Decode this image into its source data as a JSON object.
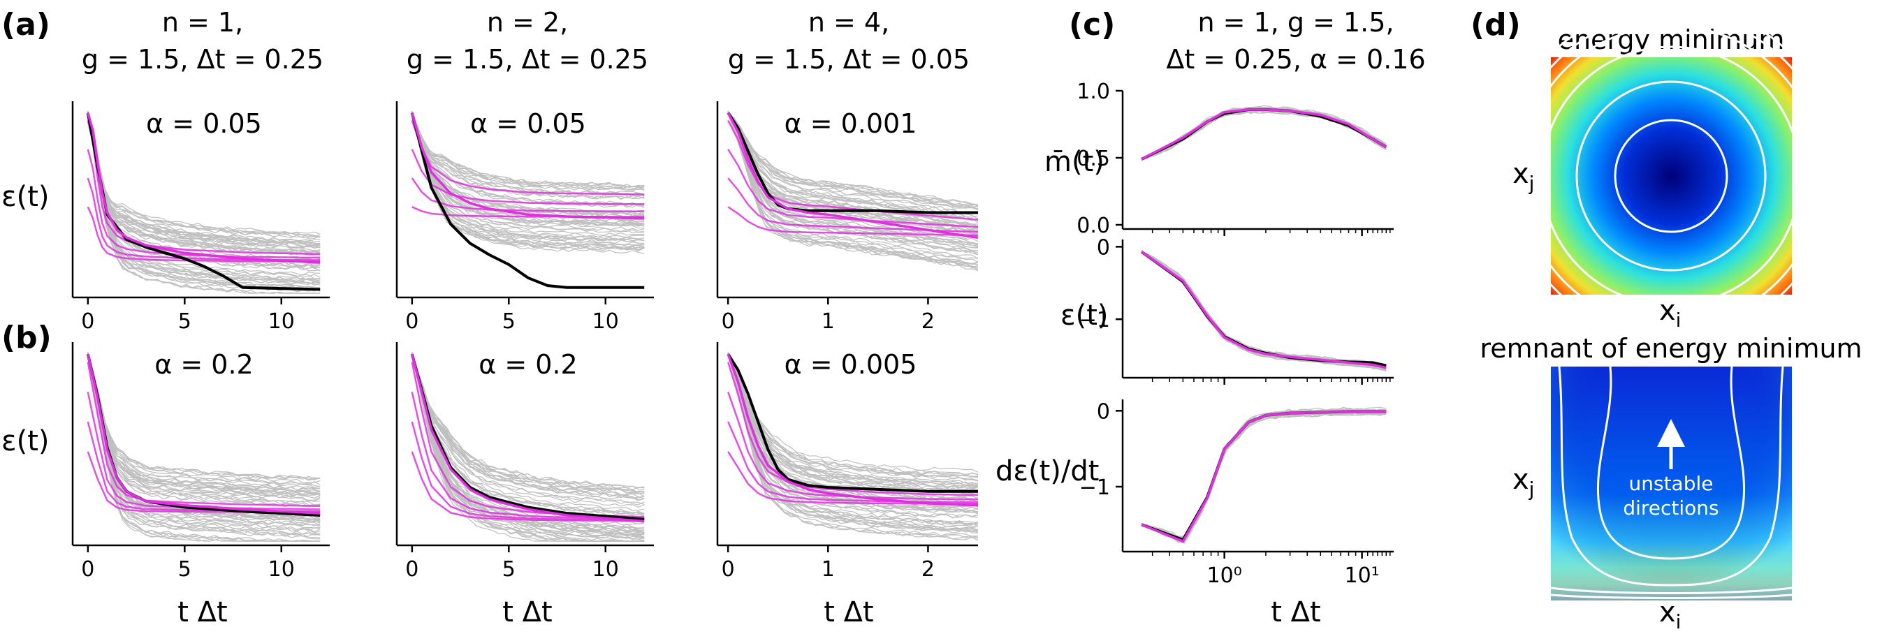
{
  "panel_labels": [
    "(a)",
    "(b)",
    "(c)",
    "(d)"
  ],
  "column_titles": [
    {
      "line1": "n = 1,",
      "line2": "g = 1.5, Δt = 0.25"
    },
    {
      "line1": "n = 2,",
      "line2": "g = 1.5, Δt = 0.25"
    },
    {
      "line1": "n = 4,",
      "line2": "g = 1.5, Δt = 0.05"
    }
  ],
  "panel_c_title": {
    "line1": "n = 1, g = 1.5,",
    "line2": "Δt = 0.25, α = 0.16"
  },
  "axis_labels": {
    "t_dt": "t Δt",
    "epsilon": "ε(t)",
    "mbar": "m̄(t)",
    "deps_dt": "dε(t)/dt",
    "xi": "xi",
    "xj": "xj"
  },
  "panel_d": {
    "top_title": "energy minimum",
    "bottom_title": "remnant of energy minimum",
    "annotation_line1": "unstable",
    "annotation_line2": "directions"
  },
  "colors": {
    "ensemble": "#8c8c8c",
    "mean": "#000000",
    "theory": "#e02fe0"
  },
  "chart_data": [
    {
      "id": "a1",
      "type": "line",
      "row": "a",
      "column": 1,
      "annotation": "α = 0.05",
      "x_label": "t Δt",
      "y_label": "ε(t)",
      "xlim": [
        -0.5,
        12.5
      ],
      "ylim": [
        0,
        1
      ],
      "xticks": [
        0,
        5,
        10
      ],
      "xtick_labels": [
        "0",
        "5",
        "10"
      ],
      "show_yticks": false,
      "series": [
        {
          "name": "theory",
          "x": [
            0,
            0.25,
            0.5,
            0.75,
            1,
            1.5,
            2,
            3,
            5,
            8,
            12
          ],
          "y": [
            0.94,
            0.85,
            0.68,
            0.52,
            0.42,
            0.33,
            0.29,
            0.25,
            0.21,
            0.18,
            0.16
          ]
        },
        {
          "name": "mean",
          "x": [
            0,
            0.5,
            1,
            2,
            3,
            4,
            5,
            6,
            7,
            7.5,
            8,
            12
          ],
          "y": [
            0.94,
            0.66,
            0.41,
            0.28,
            0.24,
            0.21,
            0.18,
            0.14,
            0.09,
            0.06,
            0.03,
            0.02
          ]
        }
      ]
    },
    {
      "id": "a2",
      "type": "line",
      "row": "a",
      "column": 2,
      "annotation": "α = 0.05",
      "x_label": "t Δt",
      "y_label": "",
      "xlim": [
        -0.5,
        12.5
      ],
      "ylim": [
        0,
        1
      ],
      "xticks": [
        0,
        5,
        10
      ],
      "xtick_labels": [
        "0",
        "5",
        "10"
      ],
      "show_yticks": false,
      "series": [
        {
          "name": "theory",
          "x": [
            0,
            0.5,
            1,
            2,
            3,
            4,
            6,
            8,
            12
          ],
          "y": [
            0.94,
            0.76,
            0.63,
            0.52,
            0.47,
            0.44,
            0.41,
            0.4,
            0.39
          ]
        },
        {
          "name": "mean",
          "x": [
            0,
            1,
            2,
            3,
            4,
            5,
            6,
            7,
            8,
            12
          ],
          "y": [
            0.94,
            0.55,
            0.36,
            0.26,
            0.2,
            0.15,
            0.08,
            0.04,
            0.03,
            0.03
          ]
        }
      ]
    },
    {
      "id": "a3",
      "type": "line",
      "row": "a",
      "column": 3,
      "annotation": "α = 0.001",
      "x_label": "t Δt",
      "y_label": "",
      "xlim": [
        -0.05,
        2.5
      ],
      "ylim": [
        0,
        1
      ],
      "xticks": [
        0,
        1,
        2
      ],
      "xtick_labels": [
        "0",
        "1",
        "2"
      ],
      "show_yticks": false,
      "series": [
        {
          "name": "theory",
          "x": [
            0,
            0.1,
            0.2,
            0.3,
            0.4,
            0.6,
            0.8,
            1.0,
            1.5,
            2.0,
            2.5
          ],
          "y": [
            0.94,
            0.84,
            0.7,
            0.58,
            0.5,
            0.44,
            0.42,
            0.41,
            0.37,
            0.33,
            0.29
          ]
        },
        {
          "name": "mean",
          "x": [
            0,
            0.1,
            0.2,
            0.3,
            0.4,
            0.5,
            0.6,
            0.8,
            1.0,
            1.5,
            2.0,
            2.5
          ],
          "y": [
            0.94,
            0.86,
            0.74,
            0.62,
            0.52,
            0.46,
            0.44,
            0.43,
            0.43,
            0.43,
            0.42,
            0.42
          ]
        }
      ]
    },
    {
      "id": "b1",
      "type": "line",
      "row": "b",
      "column": 1,
      "annotation": "α = 0.2",
      "x_label": "t Δt",
      "y_label": "ε(t)",
      "xlim": [
        -0.5,
        12.5
      ],
      "ylim": [
        0,
        1
      ],
      "xticks": [
        0,
        5,
        10
      ],
      "xtick_labels": [
        "0",
        "5",
        "10"
      ],
      "show_yticks": false,
      "series": [
        {
          "name": "theory",
          "x": [
            0,
            0.5,
            1,
            1.5,
            2,
            3,
            5,
            8,
            12
          ],
          "y": [
            0.94,
            0.72,
            0.46,
            0.32,
            0.25,
            0.2,
            0.18,
            0.16,
            0.14
          ]
        },
        {
          "name": "mean",
          "x": [
            0,
            0.5,
            1,
            1.5,
            2,
            3,
            5,
            8,
            12
          ],
          "y": [
            0.94,
            0.73,
            0.47,
            0.32,
            0.25,
            0.2,
            0.17,
            0.15,
            0.13
          ]
        }
      ]
    },
    {
      "id": "b2",
      "type": "line",
      "row": "b",
      "column": 2,
      "annotation": "α = 0.2",
      "x_label": "t Δt",
      "y_label": "",
      "xlim": [
        -0.5,
        12.5
      ],
      "ylim": [
        0,
        1
      ],
      "xticks": [
        0,
        5,
        10
      ],
      "xtick_labels": [
        "0",
        "5",
        "10"
      ],
      "show_yticks": false,
      "series": [
        {
          "name": "theory",
          "x": [
            0,
            0.5,
            1,
            2,
            3,
            4,
            6,
            8,
            12
          ],
          "y": [
            0.94,
            0.75,
            0.56,
            0.36,
            0.26,
            0.21,
            0.16,
            0.13,
            0.1
          ]
        },
        {
          "name": "mean",
          "x": [
            0,
            0.5,
            1,
            2,
            3,
            4,
            6,
            8,
            12
          ],
          "y": [
            0.94,
            0.76,
            0.58,
            0.37,
            0.27,
            0.22,
            0.17,
            0.14,
            0.11
          ]
        }
      ]
    },
    {
      "id": "b3",
      "type": "line",
      "row": "b",
      "column": 3,
      "annotation": "α = 0.005",
      "x_label": "t Δt",
      "y_label": "",
      "xlim": [
        -0.05,
        2.5
      ],
      "ylim": [
        0,
        1
      ],
      "xticks": [
        0,
        1,
        2
      ],
      "xtick_labels": [
        "0",
        "1",
        "2"
      ],
      "show_yticks": false,
      "series": [
        {
          "name": "theory",
          "x": [
            0,
            0.1,
            0.2,
            0.3,
            0.4,
            0.6,
            0.8,
            1.0,
            1.5,
            2.0,
            2.5
          ],
          "y": [
            0.94,
            0.8,
            0.62,
            0.48,
            0.38,
            0.3,
            0.26,
            0.24,
            0.21,
            0.19,
            0.18
          ]
        },
        {
          "name": "mean",
          "x": [
            0,
            0.1,
            0.2,
            0.3,
            0.4,
            0.5,
            0.6,
            0.8,
            1.0,
            1.5,
            2.0,
            2.5
          ],
          "y": [
            0.94,
            0.86,
            0.74,
            0.6,
            0.46,
            0.36,
            0.31,
            0.28,
            0.27,
            0.26,
            0.25,
            0.25
          ]
        }
      ]
    },
    {
      "id": "c1",
      "type": "line",
      "row": "c",
      "column": 4,
      "x_label": "",
      "y_label": "m̄(t)",
      "x_scale": "log",
      "xlim": [
        0.2,
        17
      ],
      "ylim": [
        0,
        1.0
      ],
      "yticks": [
        0,
        0.5,
        1.0
      ],
      "ytick_labels": [
        "0.0",
        "0.5",
        "1.0"
      ],
      "xticks": [
        1,
        10
      ],
      "xtick_labels": [],
      "series": [
        {
          "name": "theory",
          "x": [
            0.25,
            0.5,
            0.75,
            1,
            1.5,
            2,
            3,
            5,
            8,
            12,
            15
          ],
          "y": [
            0.49,
            0.65,
            0.77,
            0.84,
            0.86,
            0.86,
            0.85,
            0.82,
            0.75,
            0.64,
            0.58
          ]
        },
        {
          "name": "mean",
          "x": [
            0.25,
            0.5,
            0.75,
            1,
            1.5,
            2,
            3,
            5,
            8,
            12,
            15
          ],
          "y": [
            0.49,
            0.64,
            0.77,
            0.83,
            0.86,
            0.86,
            0.85,
            0.81,
            0.74,
            0.64,
            0.58
          ]
        }
      ]
    },
    {
      "id": "c2",
      "type": "line",
      "row": "c",
      "column": 4,
      "x_label": "",
      "y_label": "ε(t)",
      "x_scale": "log",
      "xlim": [
        0.2,
        17
      ],
      "ylim": [
        -1.75,
        0.1
      ],
      "yticks": [
        -1,
        0
      ],
      "ytick_labels": [
        "−1",
        "0"
      ],
      "xticks": [
        1,
        10
      ],
      "xtick_labels": [],
      "series": [
        {
          "name": "theory",
          "x": [
            0.25,
            0.5,
            0.75,
            1,
            1.5,
            2,
            3,
            5,
            8,
            12,
            15
          ],
          "y": [
            -0.07,
            -0.47,
            -0.95,
            -1.25,
            -1.42,
            -1.48,
            -1.52,
            -1.56,
            -1.6,
            -1.63,
            -1.67
          ]
        },
        {
          "name": "mean",
          "x": [
            0.25,
            0.5,
            0.75,
            1,
            1.5,
            2,
            3,
            5,
            8,
            12,
            15
          ],
          "y": [
            -0.07,
            -0.48,
            -0.96,
            -1.24,
            -1.41,
            -1.47,
            -1.53,
            -1.57,
            -1.59,
            -1.6,
            -1.64
          ]
        }
      ]
    },
    {
      "id": "c3",
      "type": "line",
      "row": "c",
      "column": 4,
      "x_label": "t Δt",
      "y_label": "dε(t)/dt",
      "x_scale": "log",
      "xlim": [
        0.2,
        17
      ],
      "ylim": [
        -1.8,
        0.15
      ],
      "yticks": [
        -1,
        0
      ],
      "ytick_labels": [
        "−1",
        "0"
      ],
      "xticks": [
        1,
        10
      ],
      "xtick_labels": [
        "10⁰",
        "10¹"
      ],
      "series": [
        {
          "name": "theory",
          "x": [
            0.25,
            0.5,
            0.75,
            1,
            1.5,
            2,
            3,
            5,
            8,
            12,
            15
          ],
          "y": [
            -1.5,
            -1.72,
            -1.15,
            -0.5,
            -0.15,
            -0.06,
            -0.03,
            -0.02,
            -0.01,
            -0.01,
            -0.01
          ]
        },
        {
          "name": "mean",
          "x": [
            0.25,
            0.5,
            0.75,
            1,
            1.5,
            2,
            3,
            5,
            8,
            12,
            15
          ],
          "y": [
            -1.5,
            -1.7,
            -1.14,
            -0.5,
            -0.15,
            -0.06,
            -0.03,
            -0.02,
            -0.01,
            -0.01,
            -0.01
          ]
        }
      ]
    }
  ]
}
